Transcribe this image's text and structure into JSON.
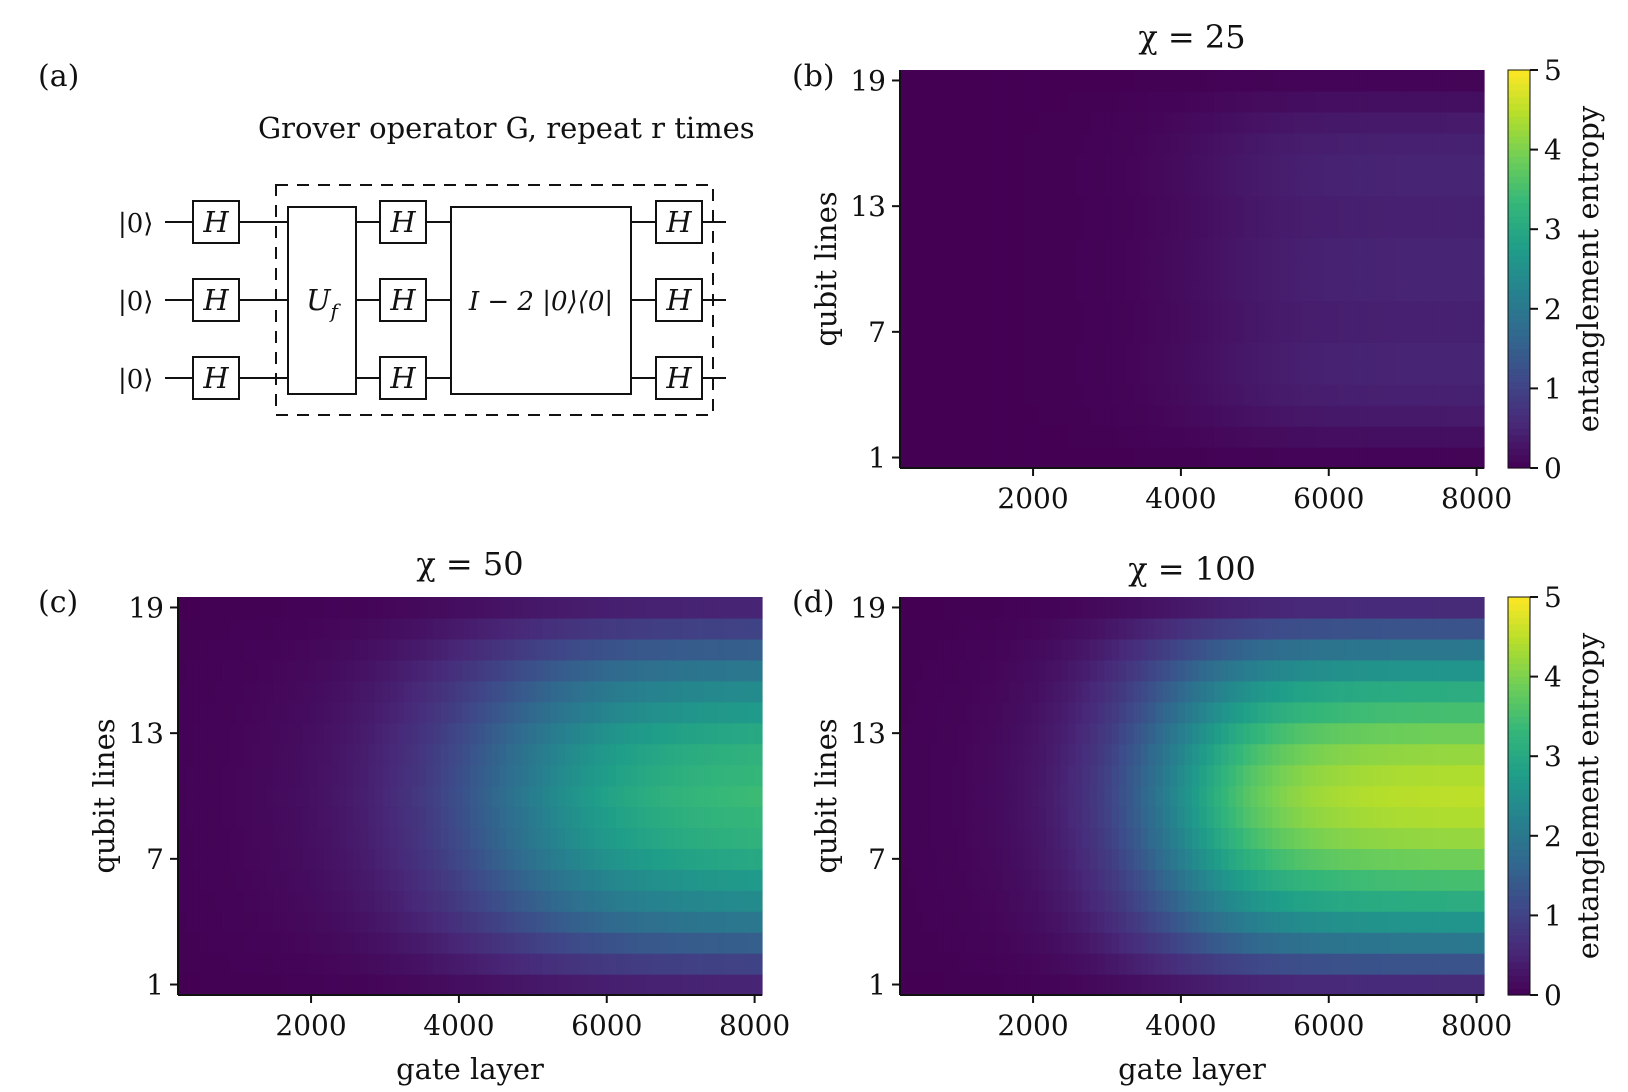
{
  "figure": {
    "panels": {
      "a": "(a)",
      "b": "(b)",
      "c": "(c)",
      "d": "(d)"
    },
    "circuit": {
      "caption": "Grover operator G, repeat r times",
      "inputs": [
        "|0⟩",
        "|0⟩",
        "|0⟩"
      ],
      "hadamard": "H",
      "oracle": "U_f",
      "diffusion": "I − 2 |0⟩⟨0|"
    },
    "colormap": {
      "name": "viridis",
      "stops": [
        "#440154",
        "#482878",
        "#3e4989",
        "#31688e",
        "#26828e",
        "#1f9e89",
        "#35b779",
        "#6ece58",
        "#b5de2b",
        "#fde725"
      ]
    }
  },
  "chart_data": [
    {
      "type": "heatmap",
      "panel": "(b)",
      "title": "χ = 25",
      "chi": 25,
      "xlabel": "",
      "ylabel": "qubit lines",
      "xlim": [
        200,
        8100
      ],
      "xticks": [
        2000,
        4000,
        6000,
        8000
      ],
      "ylim": [
        0.5,
        19.5
      ],
      "yticks": [
        1,
        7,
        13,
        19
      ],
      "colorbar": {
        "label": "entanglement entropy",
        "range": [
          0,
          5
        ],
        "ticks": [
          0,
          1,
          2,
          3,
          4,
          5
        ]
      },
      "value_note": "entanglement entropy per qubit line vs gate layer",
      "peak_entropy_at_8000_by_line": [
        0.05,
        0.2,
        0.35,
        0.45,
        0.5,
        0.5,
        0.45,
        0.45,
        0.5,
        0.5,
        0.5,
        0.45,
        0.45,
        0.5,
        0.5,
        0.45,
        0.35,
        0.2,
        0.05
      ],
      "onset_gate_layer": 3000,
      "growth_width": 2500
    },
    {
      "type": "heatmap",
      "panel": "(c)",
      "title": "χ = 50",
      "chi": 50,
      "xlabel": "gate layer",
      "ylabel": "qubit lines",
      "xlim": [
        200,
        8100
      ],
      "xticks": [
        2000,
        4000,
        6000,
        8000
      ],
      "ylim": [
        0.5,
        19.5
      ],
      "yticks": [
        1,
        7,
        13,
        19
      ],
      "value_note": "entanglement entropy per qubit line vs gate layer",
      "peak_entropy_at_8000_by_line": [
        0.5,
        1.0,
        1.5,
        2.0,
        2.4,
        2.7,
        3.0,
        3.2,
        3.3,
        3.4,
        3.3,
        3.2,
        3.0,
        2.7,
        2.4,
        2.0,
        1.5,
        1.0,
        0.5
      ],
      "onset_gate_layer": 2300,
      "growth_width": 3800
    },
    {
      "type": "heatmap",
      "panel": "(d)",
      "title": "χ = 100",
      "chi": 100,
      "xlabel": "gate layer",
      "ylabel": "qubit lines",
      "xlim": [
        200,
        8100
      ],
      "xticks": [
        2000,
        4000,
        6000,
        8000
      ],
      "ylim": [
        0.5,
        19.5
      ],
      "yticks": [
        1,
        7,
        13,
        19
      ],
      "colorbar": {
        "label": "entanglement entropy",
        "range": [
          0,
          5
        ],
        "ticks": [
          0,
          1,
          2,
          3,
          4,
          5
        ]
      },
      "value_note": "entanglement entropy per qubit line vs gate layer",
      "peak_entropy_at_8000_by_line": [
        0.6,
        1.3,
        2.0,
        2.6,
        3.1,
        3.5,
        3.9,
        4.2,
        4.4,
        4.5,
        4.4,
        4.2,
        3.9,
        3.5,
        3.1,
        2.6,
        2.0,
        1.3,
        0.6
      ],
      "onset_gate_layer": 2200,
      "growth_width": 2800
    }
  ]
}
